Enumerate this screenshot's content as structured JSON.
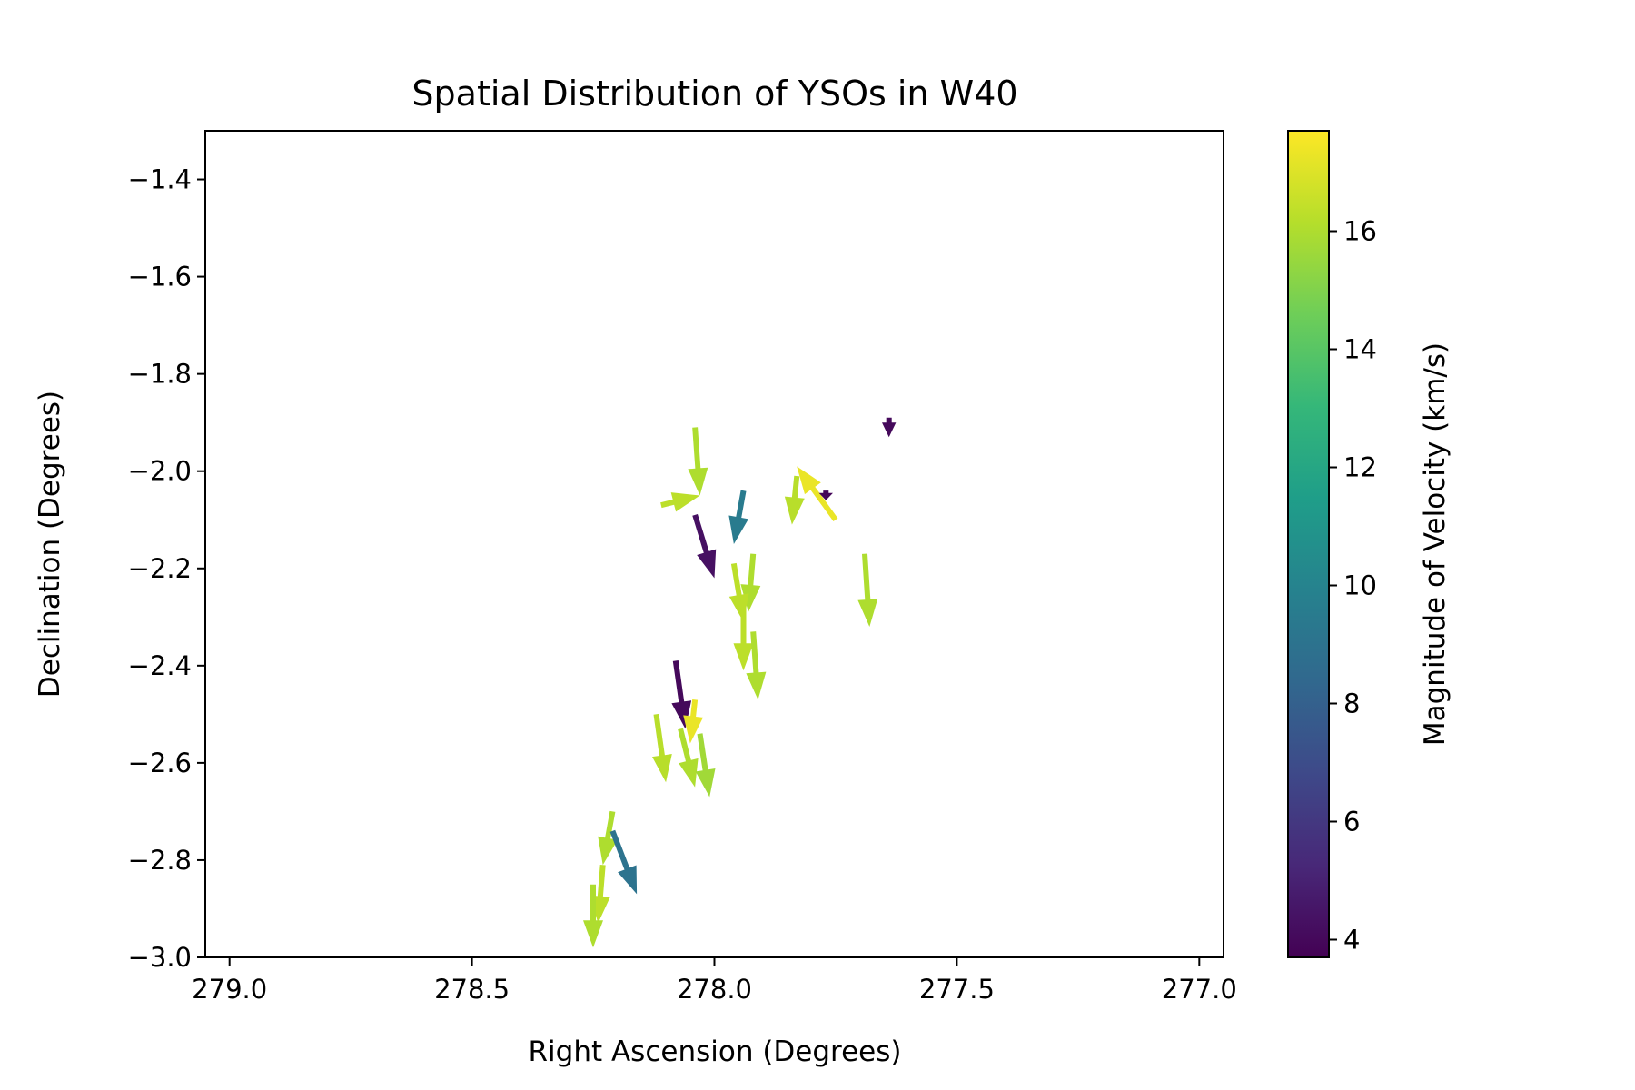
{
  "chart_data": {
    "type": "quiver",
    "title": "Spatial Distribution of YSOs in W40",
    "xlabel": "Right Ascension (Degrees)",
    "ylabel": "Declination (Degrees)",
    "xlim": [
      279.05,
      276.95
    ],
    "ylim": [
      -3.0,
      -1.3
    ],
    "xticks": [
      279.0,
      278.5,
      278.0,
      277.5,
      277.0
    ],
    "xtick_labels": [
      "279.0",
      "278.5",
      "278.0",
      "277.5",
      "277.0"
    ],
    "yticks": [
      -1.4,
      -1.6,
      -1.8,
      -2.0,
      -2.2,
      -2.4,
      -2.6,
      -2.8,
      -3.0
    ],
    "ytick_labels": [
      "−1.4",
      "−1.6",
      "−1.8",
      "−2.0",
      "−2.2",
      "−2.4",
      "−2.6",
      "−2.8",
      "−3.0"
    ],
    "grid": false,
    "colorbar": {
      "label": "Magnitude of Velocity (km/s)",
      "range": [
        3.7,
        17.7
      ],
      "ticks": [
        4,
        6,
        8,
        10,
        12,
        14,
        16
      ],
      "tick_labels": [
        "4",
        "6",
        "8",
        "10",
        "12",
        "14",
        "16"
      ],
      "colormap": "viridis"
    },
    "colormap_stops": [
      "#440154",
      "#482878",
      "#3e4989",
      "#31688e",
      "#26828e",
      "#1f9e89",
      "#35b779",
      "#6ece58",
      "#b5de2b",
      "#fde725"
    ],
    "vectors": [
      {
        "ra": 277.64,
        "dec": -1.89,
        "dra": 0.0,
        "ddec": -0.04,
        "v": 4.0
      },
      {
        "ra": 277.75,
        "dec": -2.1,
        "dra": 0.08,
        "ddec": 0.11,
        "v": 17.3
      },
      {
        "ra": 277.77,
        "dec": -2.04,
        "dra": 0.0,
        "ddec": -0.02,
        "v": 3.9
      },
      {
        "ra": 277.83,
        "dec": -2.01,
        "dra": 0.01,
        "ddec": -0.1,
        "v": 16.2
      },
      {
        "ra": 278.04,
        "dec": -1.91,
        "dra": -0.01,
        "ddec": -0.14,
        "v": 16.0
      },
      {
        "ra": 278.11,
        "dec": -2.07,
        "dra": -0.08,
        "ddec": 0.02,
        "v": 16.3
      },
      {
        "ra": 277.94,
        "dec": -2.04,
        "dra": 0.02,
        "ddec": -0.11,
        "v": 9.5
      },
      {
        "ra": 278.04,
        "dec": -2.09,
        "dra": -0.04,
        "ddec": -0.13,
        "v": 4.3
      },
      {
        "ra": 277.92,
        "dec": -2.17,
        "dra": 0.01,
        "ddec": -0.12,
        "v": 16.0
      },
      {
        "ra": 277.96,
        "dec": -2.19,
        "dra": -0.02,
        "ddec": -0.12,
        "v": 16.3
      },
      {
        "ra": 277.69,
        "dec": -2.17,
        "dra": -0.01,
        "ddec": -0.15,
        "v": 16.0
      },
      {
        "ra": 277.94,
        "dec": -2.28,
        "dra": 0.0,
        "ddec": -0.13,
        "v": 16.3
      },
      {
        "ra": 277.92,
        "dec": -2.33,
        "dra": -0.01,
        "ddec": -0.14,
        "v": 16.0
      },
      {
        "ra": 278.08,
        "dec": -2.39,
        "dra": -0.02,
        "ddec": -0.14,
        "v": 4.0
      },
      {
        "ra": 278.04,
        "dec": -2.47,
        "dra": 0.01,
        "ddec": -0.09,
        "v": 17.3
      },
      {
        "ra": 278.12,
        "dec": -2.5,
        "dra": -0.02,
        "ddec": -0.14,
        "v": 16.2
      },
      {
        "ra": 278.07,
        "dec": -2.53,
        "dra": -0.03,
        "ddec": -0.12,
        "v": 16.0
      },
      {
        "ra": 278.03,
        "dec": -2.54,
        "dra": -0.02,
        "ddec": -0.13,
        "v": 15.7
      },
      {
        "ra": 278.21,
        "dec": -2.7,
        "dra": 0.02,
        "ddec": -0.11,
        "v": 16.0
      },
      {
        "ra": 278.21,
        "dec": -2.74,
        "dra": -0.05,
        "ddec": -0.13,
        "v": 9.0
      },
      {
        "ra": 278.23,
        "dec": -2.81,
        "dra": 0.01,
        "ddec": -0.12,
        "v": 16.3
      },
      {
        "ra": 278.25,
        "dec": -2.85,
        "dra": 0.0,
        "ddec": -0.13,
        "v": 16.0
      }
    ]
  }
}
